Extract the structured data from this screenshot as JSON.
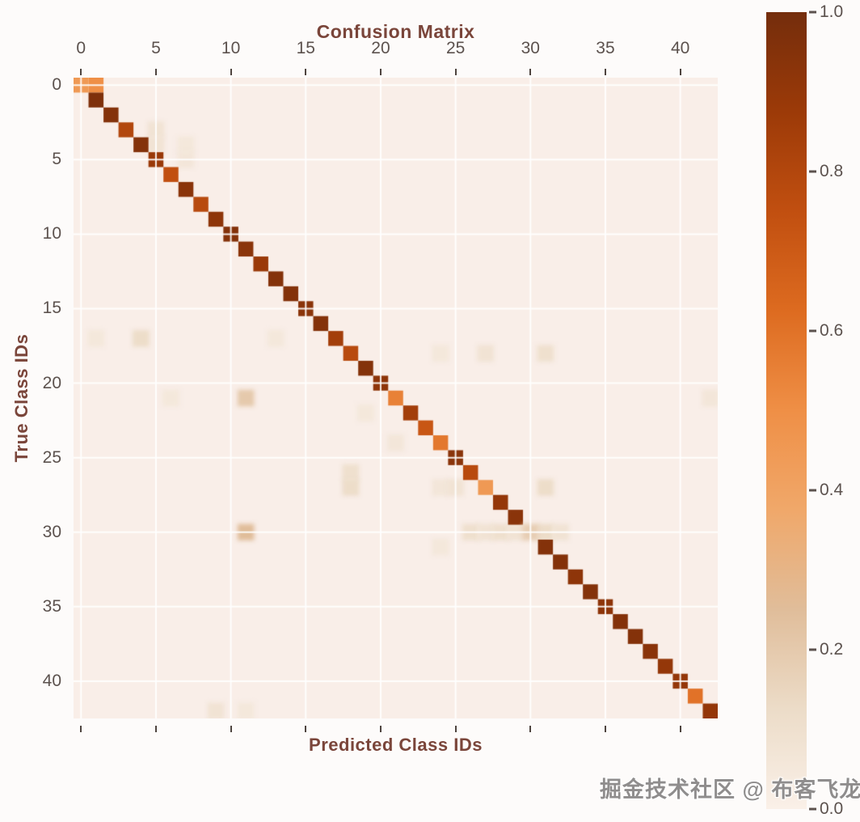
{
  "title": "Confusion Matrix",
  "xlabel": "Predicted Class IDs",
  "ylabel": "True Class IDs",
  "watermark": "掘金技术社区 @ 布客飞龙",
  "colors": {
    "title": "#7a453a",
    "axis_label": "#7a453a",
    "tick_label": "#5c524e",
    "tick_mark": "#4e443f",
    "grid": "#ffffff",
    "plot_bg": "#f9eee8",
    "page_bg": "#fdfbfa",
    "watermark": "#8f8d8d",
    "colormap_anchors": [
      [
        0.0,
        "#faf0e8"
      ],
      [
        0.125,
        "#ecdcc8"
      ],
      [
        0.25,
        "#e0bd9a"
      ],
      [
        0.375,
        "#f0a86a"
      ],
      [
        0.5,
        "#ef8f46"
      ],
      [
        0.625,
        "#dd6b20"
      ],
      [
        0.75,
        "#c14f10"
      ],
      [
        0.875,
        "#9c3a08"
      ],
      [
        1.0,
        "#742d0c"
      ]
    ]
  },
  "chart_data": {
    "type": "heatmap",
    "title": "Confusion Matrix",
    "xlabel": "Predicted Class IDs",
    "ylabel": "True Class IDs",
    "n_classes": 43,
    "value_range": [
      0.0,
      1.0
    ],
    "colormap": "Oranges",
    "grid": "on, white lines at ticks (every 5 classes)",
    "x_tick_labels": [
      "0",
      "5",
      "10",
      "15",
      "20",
      "25",
      "30",
      "35",
      "40"
    ],
    "y_tick_labels": [
      "0",
      "5",
      "10",
      "15",
      "20",
      "25",
      "30",
      "35",
      "40"
    ],
    "tick_values": [
      0,
      5,
      10,
      15,
      20,
      25,
      30,
      35,
      40
    ],
    "colorbar_tick_labels": [
      "1.0",
      "0.8",
      "0.6",
      "0.4",
      "0.2",
      "0.0"
    ],
    "colorbar_position": "right",
    "diagonal": [
      0.45,
      0.97,
      0.95,
      0.8,
      0.95,
      0.88,
      0.75,
      0.93,
      0.78,
      0.92,
      0.95,
      0.93,
      0.88,
      0.95,
      0.95,
      0.93,
      0.95,
      0.85,
      0.78,
      0.95,
      0.92,
      0.55,
      0.85,
      0.72,
      0.58,
      0.93,
      0.78,
      0.45,
      0.9,
      0.93,
      0.18,
      0.95,
      0.95,
      0.92,
      0.95,
      0.92,
      0.95,
      0.95,
      0.93,
      0.9,
      0.9,
      0.6,
      0.9
    ],
    "off_diagonal": [
      [
        0,
        1,
        0.5
      ],
      [
        3,
        5,
        0.08
      ],
      [
        4,
        5,
        0.08
      ],
      [
        4,
        7,
        0.05
      ],
      [
        5,
        7,
        0.06
      ],
      [
        17,
        1,
        0.05
      ],
      [
        17,
        4,
        0.12
      ],
      [
        17,
        13,
        0.05
      ],
      [
        18,
        24,
        0.05
      ],
      [
        18,
        27,
        0.08
      ],
      [
        18,
        31,
        0.1
      ],
      [
        21,
        6,
        0.05
      ],
      [
        21,
        11,
        0.2
      ],
      [
        21,
        42,
        0.06
      ],
      [
        22,
        19,
        0.05
      ],
      [
        24,
        21,
        0.06
      ],
      [
        26,
        18,
        0.1
      ],
      [
        27,
        18,
        0.12
      ],
      [
        27,
        24,
        0.06
      ],
      [
        27,
        25,
        0.08
      ],
      [
        27,
        31,
        0.12
      ],
      [
        30,
        11,
        0.25
      ],
      [
        30,
        26,
        0.1
      ],
      [
        30,
        27,
        0.08
      ],
      [
        30,
        28,
        0.1
      ],
      [
        30,
        29,
        0.08
      ],
      [
        30,
        31,
        0.12
      ],
      [
        30,
        32,
        0.08
      ],
      [
        31,
        24,
        0.05
      ],
      [
        42,
        9,
        0.08
      ],
      [
        42,
        11,
        0.05
      ]
    ]
  }
}
